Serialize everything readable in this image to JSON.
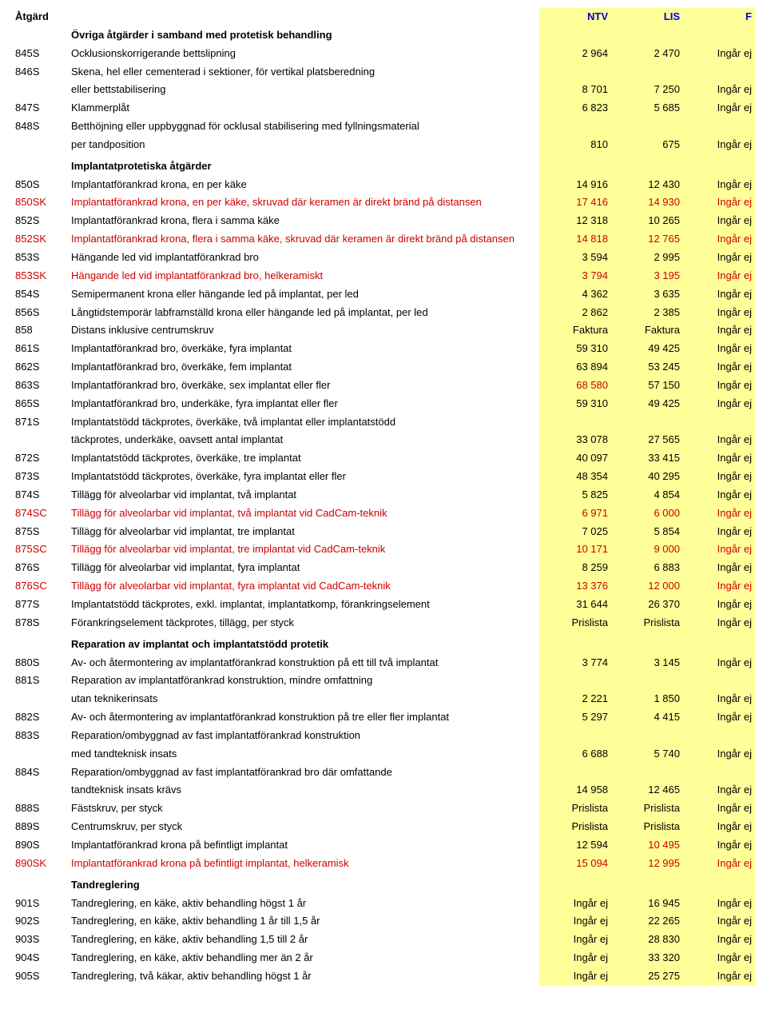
{
  "header": {
    "atgard": "Åtgärd",
    "ntv": "NTV",
    "lis": "LIS",
    "f": "F"
  },
  "sections": [
    {
      "title": "Övriga åtgärder i samband med protetisk behandling",
      "rows": [
        {
          "code": "845S",
          "desc": "Ocklusionskorrigerande bettslipning",
          "ntv": "2 964",
          "lis": "2 470",
          "f": "Ingår ej"
        },
        {
          "code": "846S",
          "desc": "Skena, hel eller cementerad i sektioner, för vertikal platsberedning",
          "ntv": "",
          "lis": "",
          "f": ""
        },
        {
          "code": "",
          "desc": "eller bettstabilisering",
          "ntv": "8 701",
          "lis": "7 250",
          "f": "Ingår ej"
        },
        {
          "code": "847S",
          "desc": "Klammerplåt",
          "ntv": "6 823",
          "lis": "5 685",
          "f": "Ingår ej"
        },
        {
          "code": "848S",
          "desc": "Betthöjning eller uppbyggnad för ocklusal stabilisering med fyllningsmaterial",
          "ntv": "",
          "lis": "",
          "f": ""
        },
        {
          "code": "",
          "desc": "per tandposition",
          "ntv": "810",
          "lis": "675",
          "f": "Ingår ej"
        }
      ]
    },
    {
      "title": "Implantatprotetiska åtgärder",
      "rows": [
        {
          "code": "850S",
          "desc": "Implantatförankrad krona, en per käke",
          "ntv": "14 916",
          "lis": "12 430",
          "f": "Ingår ej"
        },
        {
          "code": "850SK",
          "desc": "Implantatförankrad krona, en per käke, skruvad där keramen är direkt bränd på distansen",
          "ntv": "17 416",
          "lis": "14 930",
          "f": "Ingår ej",
          "redRow": true
        },
        {
          "code": "852S",
          "desc": "Implantatförankrad krona, flera i samma käke",
          "ntv": "12 318",
          "lis": "10 265",
          "f": "Ingår ej"
        },
        {
          "code": "852SK",
          "desc": "Implantatförankrad krona, flera i samma käke, skruvad där keramen är direkt bränd på distansen",
          "ntv": "14 818",
          "lis": "12 765",
          "f": "Ingår ej",
          "redRow": true
        },
        {
          "code": "853S",
          "desc": "Hängande led vid implantatförankrad bro",
          "ntv": "3 594",
          "lis": "2 995",
          "f": "Ingår ej"
        },
        {
          "code": "853SK",
          "desc": "Hängande led vid implantatförankrad bro, helkeramiskt",
          "ntv": "3 794",
          "lis": "3 195",
          "f": "Ingår ej",
          "redRow": true
        },
        {
          "code": "854S",
          "desc": "Semipermanent krona eller hängande led på implantat, per led",
          "ntv": "4 362",
          "lis": "3 635",
          "f": "Ingår ej"
        },
        {
          "code": "856S",
          "desc": "Långtidstemporär labframställd krona eller hängande led på implantat, per led",
          "ntv": "2 862",
          "lis": "2 385",
          "f": "Ingår ej"
        },
        {
          "code": "858",
          "desc": "Distans inklusive centrumskruv",
          "ntv": "Faktura",
          "lis": "Faktura",
          "f": "Ingår ej"
        },
        {
          "code": "861S",
          "desc": "Implantatförankrad bro, överkäke, fyra implantat",
          "ntv": "59 310",
          "lis": "49 425",
          "f": "Ingår ej"
        },
        {
          "code": "862S",
          "desc": "Implantatförankrad bro, överkäke, fem implantat",
          "ntv": "63 894",
          "lis": "53 245",
          "f": "Ingår ej"
        },
        {
          "code": "863S",
          "desc": "Implantatförankrad bro, överkäke, sex implantat eller fler",
          "ntv": "68 580",
          "lis": "57 150",
          "f": "Ingår ej",
          "redNtv": true
        },
        {
          "code": "865S",
          "desc": "Implantatförankrad bro, underkäke, fyra implantat eller fler",
          "ntv": "59 310",
          "lis": "49 425",
          "f": "Ingår ej"
        },
        {
          "code": "871S",
          "desc": "Implantatstödd täckprotes, överkäke, två implantat eller implantatstödd",
          "ntv": "",
          "lis": "",
          "f": ""
        },
        {
          "code": "",
          "desc": "täckprotes, underkäke, oavsett antal implantat",
          "ntv": "33 078",
          "lis": "27 565",
          "f": "Ingår ej"
        },
        {
          "code": "872S",
          "desc": "Implantatstödd täckprotes, överkäke, tre implantat",
          "ntv": "40 097",
          "lis": "33 415",
          "f": "Ingår ej"
        },
        {
          "code": "873S",
          "desc": "Implantatstödd täckprotes, överkäke, fyra implantat eller fler",
          "ntv": "48 354",
          "lis": "40 295",
          "f": "Ingår ej"
        },
        {
          "code": "874S",
          "desc": "Tillägg för alveolarbar vid implantat, två implantat",
          "ntv": "5 825",
          "lis": "4 854",
          "f": "Ingår ej"
        },
        {
          "code": "874SC",
          "desc": "Tillägg för alveolarbar vid implantat, två implantat vid CadCam-teknik",
          "ntv": "6 971",
          "lis": "6 000",
          "f": "Ingår ej",
          "redRow": true
        },
        {
          "code": "875S",
          "desc": "Tillägg för alveolarbar vid implantat, tre implantat",
          "ntv": "7 025",
          "lis": "5 854",
          "f": "Ingår ej"
        },
        {
          "code": "875SC",
          "desc": "Tillägg för alveolarbar vid implantat, tre implantat vid CadCam-teknik",
          "ntv": "10 171",
          "lis": "9 000",
          "f": "Ingår ej",
          "redRow": true
        },
        {
          "code": "876S",
          "desc": "Tillägg för alveolarbar vid implantat, fyra implantat",
          "ntv": "8 259",
          "lis": "6 883",
          "f": "Ingår ej"
        },
        {
          "code": "876SC",
          "desc": "Tillägg för alveolarbar vid implantat, fyra implantat vid CadCam-teknik",
          "ntv": "13 376",
          "lis": "12 000",
          "f": "Ingår ej",
          "redRow": true
        },
        {
          "code": "877S",
          "desc": "Implantatstödd täckprotes, exkl. implantat, implantatkomp, förankringselement",
          "ntv": "31 644",
          "lis": "26 370",
          "f": "Ingår ej"
        },
        {
          "code": "878S",
          "desc": "Förankringselement täckprotes, tillägg, per styck",
          "ntv": "Prislista",
          "lis": "Prislista",
          "f": "Ingår ej"
        }
      ]
    },
    {
      "title": "Reparation av implantat och implantatstödd protetik",
      "rows": [
        {
          "code": "880S",
          "desc": "Av- och återmontering av implantatförankrad konstruktion på ett till två implantat",
          "ntv": "3 774",
          "lis": "3 145",
          "f": "Ingår ej"
        },
        {
          "code": "881S",
          "desc": "Reparation av implantatförankrad konstruktion, mindre omfattning",
          "ntv": "",
          "lis": "",
          "f": ""
        },
        {
          "code": "",
          "desc": " utan teknikerinsats",
          "ntv": "2 221",
          "lis": "1 850",
          "f": "Ingår ej"
        },
        {
          "code": "882S",
          "desc": "Av- och återmontering av implantatförankrad konstruktion på tre eller fler implantat",
          "ntv": "5 297",
          "lis": "4 415",
          "f": "Ingår ej"
        },
        {
          "code": "883S",
          "desc": "Reparation/ombyggnad av fast implantatförankrad konstruktion",
          "ntv": "",
          "lis": "",
          "f": ""
        },
        {
          "code": "",
          "desc": "med tandteknisk insats",
          "ntv": "6 688",
          "lis": "5 740",
          "f": "Ingår ej"
        },
        {
          "code": "884S",
          "desc": "Reparation/ombyggnad av fast implantatförankrad bro där omfattande",
          "ntv": "",
          "lis": "",
          "f": ""
        },
        {
          "code": "",
          "desc": "tandteknisk insats krävs",
          "ntv": "14 958",
          "lis": "12 465",
          "f": "Ingår ej"
        },
        {
          "code": "888S",
          "desc": "Fästskruv, per styck",
          "ntv": "Prislista",
          "lis": "Prislista",
          "f": "Ingår ej"
        },
        {
          "code": "889S",
          "desc": "Centrumskruv, per styck",
          "ntv": "Prislista",
          "lis": "Prislista",
          "f": "Ingår ej"
        },
        {
          "code": "890S",
          "desc": "Implantatförankrad krona på befintligt implantat",
          "ntv": "12 594",
          "lis": "10 495",
          "f": "Ingår ej",
          "redLis": true
        },
        {
          "code": "890SK",
          "desc": "Implantatförankrad krona på befintligt implantat, helkeramisk",
          "ntv": "15 094",
          "lis": "12 995",
          "f": "Ingår ej",
          "redRow": true
        }
      ]
    },
    {
      "title": "Tandreglering",
      "rows": [
        {
          "code": "901S",
          "desc": "Tandreglering, en käke, aktiv behandling högst 1 år",
          "ntv": "Ingår ej",
          "lis": "16 945",
          "f": "Ingår ej"
        },
        {
          "code": "902S",
          "desc": "Tandreglering, en käke, aktiv behandling 1 år till 1,5 år",
          "ntv": "Ingår ej",
          "lis": "22 265",
          "f": "Ingår ej"
        },
        {
          "code": "903S",
          "desc": "Tandreglering, en käke, aktiv behandling 1,5 till 2 år",
          "ntv": "Ingår ej",
          "lis": "28 830",
          "f": "Ingår ej"
        },
        {
          "code": "904S",
          "desc": "Tandreglering, en käke, aktiv behandling mer än 2 år",
          "ntv": "Ingår ej",
          "lis": "33 320",
          "f": "Ingår ej"
        },
        {
          "code": "905S",
          "desc": "Tandreglering, två käkar, aktiv behandling högst 1 år",
          "ntv": "Ingår ej",
          "lis": "25 275",
          "f": "Ingår ej"
        }
      ]
    }
  ]
}
